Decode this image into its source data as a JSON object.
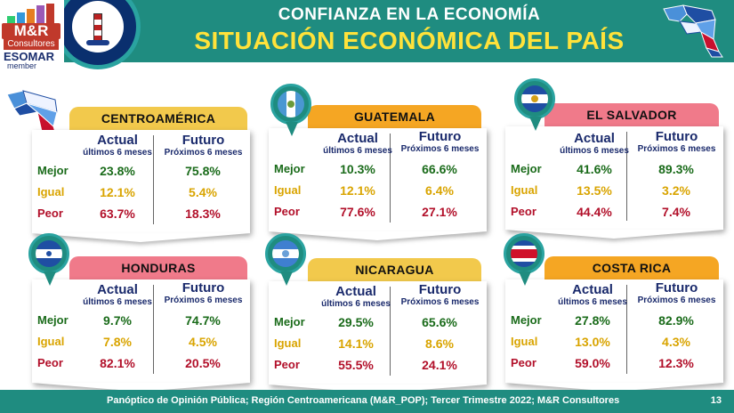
{
  "header": {
    "title_line1": "CONFIANZA EN LA ECONOMÍA",
    "title_line2": "SITUACIÓN ECONÓMICA DEL PAÍS",
    "logo": {
      "brand": "M&R",
      "sub": "Consultores",
      "esomar": "ESOMAR",
      "member": "member"
    }
  },
  "columns": {
    "actual": "Actual",
    "actual_sub": "últimos 6 meses",
    "futuro": "Futuro",
    "futuro_sub": "Próximos 6 meses"
  },
  "labels": {
    "mejor": "Mejor",
    "igual": "Igual",
    "peor": "Peor"
  },
  "colors": {
    "header": "#1f8c80",
    "title_accent": "#ffe23a",
    "mejor": "#1a6b1a",
    "igual": "#d9a400",
    "peor": "#b2102a",
    "tab_yellow": "#f2c94c",
    "tab_orange": "#f5a623",
    "tab_pink": "#f07a8a"
  },
  "cards": [
    {
      "name": "CENTROAMÉRICA",
      "actual": {
        "mejor": "23.8%",
        "igual": "12.1%",
        "peor": "63.7%"
      },
      "futuro": {
        "mejor": "75.8%",
        "igual": "5.4%",
        "peor": "18.3%"
      }
    },
    {
      "name": "GUATEMALA",
      "actual": {
        "mejor": "10.3%",
        "igual": "12.1%",
        "peor": "77.6%"
      },
      "futuro": {
        "mejor": "66.6%",
        "igual": "6.4%",
        "peor": "27.1%"
      }
    },
    {
      "name": "EL SALVADOR",
      "actual": {
        "mejor": "41.6%",
        "igual": "13.5%",
        "peor": "44.4%"
      },
      "futuro": {
        "mejor": "89.3%",
        "igual": "3.2%",
        "peor": "7.4%"
      }
    },
    {
      "name": "HONDURAS",
      "actual": {
        "mejor": "9.7%",
        "igual": "7.8%",
        "peor": "82.1%"
      },
      "futuro": {
        "mejor": "74.7%",
        "igual": "4.5%",
        "peor": "20.5%"
      }
    },
    {
      "name": "NICARAGUA",
      "actual": {
        "mejor": "29.5%",
        "igual": "14.1%",
        "peor": "55.5%"
      },
      "futuro": {
        "mejor": "65.6%",
        "igual": "8.6%",
        "peor": "24.1%"
      }
    },
    {
      "name": "COSTA RICA",
      "actual": {
        "mejor": "27.8%",
        "igual": "13.0%",
        "peor": "59.0%"
      },
      "futuro": {
        "mejor": "82.9%",
        "igual": "4.3%",
        "peor": "12.3%"
      }
    }
  ],
  "footer": {
    "source": "Panóptico de Opinión Pública; Región Centroamericana (M&R_POP); Tercer Trimestre 2022; M&R Consultores",
    "page": "13"
  }
}
